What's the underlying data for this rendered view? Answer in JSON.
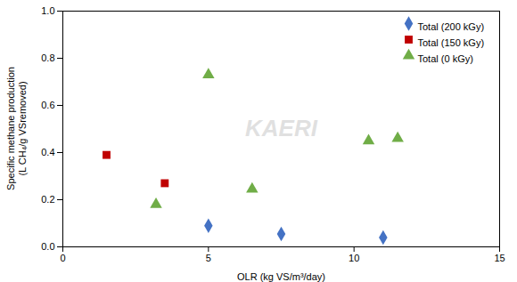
{
  "chart_data": {
    "type": "scatter",
    "series": [
      {
        "name": "Total (200 kGy)",
        "color": "#4472C4",
        "marker": "diamond",
        "x": [
          5.0,
          7.5,
          11.0
        ],
        "values": [
          0.09,
          0.055,
          0.04
        ]
      },
      {
        "name": "Total (150 kGy)",
        "color": "#C00000",
        "marker": "square",
        "x": [
          1.5,
          3.5
        ],
        "values": [
          0.39,
          0.27
        ]
      },
      {
        "name": "Total (0 kGy)",
        "color": "#70AD47",
        "marker": "triangle",
        "x": [
          3.2,
          5.0,
          6.5,
          10.5,
          11.5
        ],
        "values": [
          0.18,
          0.73,
          0.245,
          0.45,
          0.46
        ]
      }
    ],
    "xlabel": "OLR (kg VS/m³/day)",
    "ylabel": "Specific methane production\n(L CH₄/g VSremoved)",
    "xlim": [
      0,
      15
    ],
    "ylim": [
      0,
      1
    ],
    "xticks": [
      0,
      5,
      10,
      15
    ],
    "yticks": [
      {
        "value": 0,
        "label": "0.0"
      },
      0.2,
      0.4,
      0.6,
      0.8,
      {
        "value": 1,
        "label": "1.0"
      }
    ],
    "annotations": [
      "KAERI"
    ],
    "legend": "upper right",
    "grid": false
  }
}
